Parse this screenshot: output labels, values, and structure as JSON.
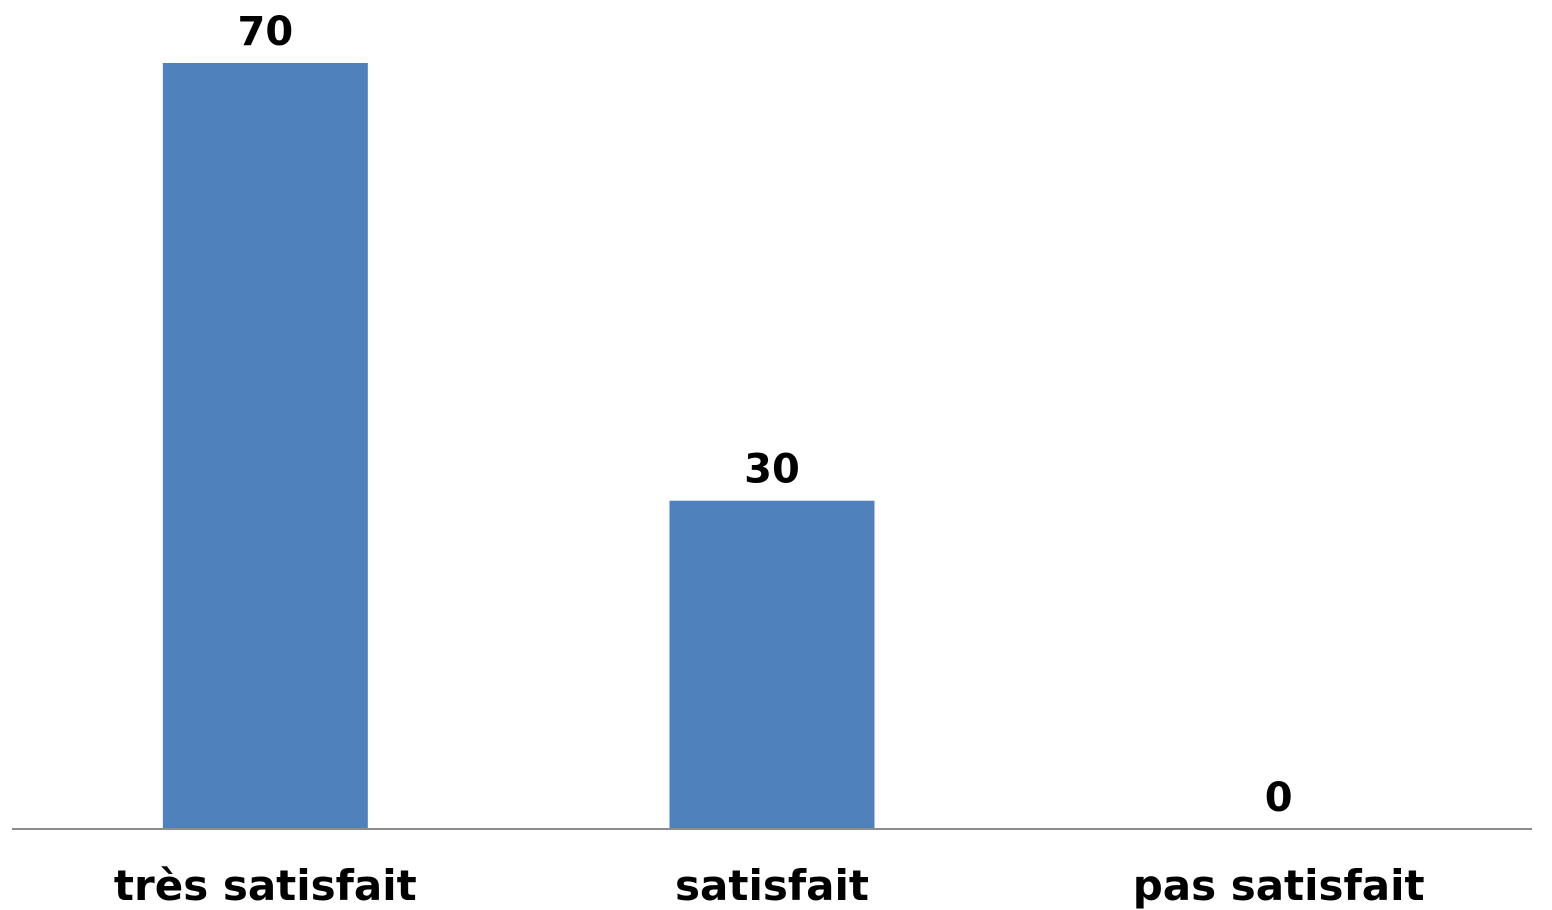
{
  "chart_data": {
    "type": "bar",
    "categories": [
      "très satisfait",
      "satisfait",
      "pas satisfait"
    ],
    "values": [
      70,
      30,
      0
    ],
    "data_labels": [
      "70",
      "30",
      "0"
    ],
    "ylim": [
      0,
      70
    ],
    "grid": false,
    "legend": "none",
    "bar_color": "#4f81bd",
    "axis_color": "#8c8c8c"
  }
}
